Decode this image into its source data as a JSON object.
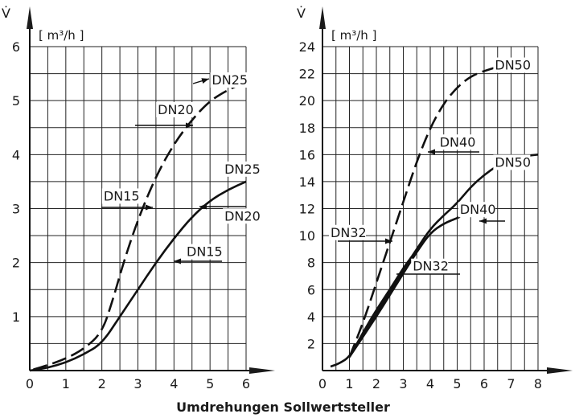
{
  "x_axis_title": "Umdrehungen Sollwertsteller",
  "chart_data": [
    {
      "type": "line",
      "y_symbol": "V̇",
      "y_unit": "[ m³/h ]",
      "xlim": [
        0,
        6
      ],
      "ylim": [
        0,
        6
      ],
      "x_ticks": [
        "0",
        "1",
        "2",
        "3",
        "4",
        "5",
        "6"
      ],
      "y_ticks": [
        "1",
        "2",
        "3",
        "4",
        "5",
        "6"
      ],
      "grid": true,
      "series": [
        {
          "style": "dashed",
          "points": [
            [
              0.1,
              0.02
            ],
            [
              0.5,
              0.1
            ],
            [
              1.0,
              0.22
            ],
            [
              1.5,
              0.4
            ],
            [
              2.0,
              0.7
            ],
            [
              2.3,
              1.3
            ],
            [
              2.6,
              2.0
            ],
            [
              3.0,
              2.8
            ],
            [
              3.5,
              3.6
            ],
            [
              4.0,
              4.2
            ],
            [
              4.5,
              4.65
            ],
            [
              5.0,
              5.0
            ],
            [
              5.5,
              5.2
            ],
            [
              6.0,
              5.35
            ]
          ]
        },
        {
          "style": "solid",
          "points": [
            [
              0.0,
              0.0
            ],
            [
              0.5,
              0.05
            ],
            [
              1.0,
              0.15
            ],
            [
              1.5,
              0.3
            ],
            [
              2.0,
              0.5
            ],
            [
              2.5,
              1.0
            ],
            [
              3.0,
              1.5
            ],
            [
              3.5,
              2.0
            ],
            [
              4.0,
              2.45
            ],
            [
              4.5,
              2.85
            ],
            [
              5.0,
              3.15
            ],
            [
              5.5,
              3.35
            ],
            [
              6.0,
              3.5
            ]
          ]
        }
      ],
      "annotations": [
        {
          "text": "DN25",
          "at": [
            5.05,
            5.3
          ]
        },
        {
          "text": "DN20",
          "at": [
            3.55,
            4.75
          ]
        },
        {
          "text": "DN25",
          "at": [
            5.4,
            3.65
          ]
        },
        {
          "text": "DN15",
          "at": [
            2.05,
            3.15
          ]
        },
        {
          "text": "DN20",
          "at": [
            5.4,
            2.78
          ]
        },
        {
          "text": "DN15",
          "at": [
            4.35,
            2.12
          ]
        }
      ]
    },
    {
      "type": "line",
      "y_symbol": "V̇",
      "y_unit": "[ m³/h ]",
      "xlim": [
        0,
        8
      ],
      "ylim": [
        0,
        24
      ],
      "x_ticks": [
        "0",
        "1",
        "2",
        "3",
        "4",
        "5",
        "6",
        "7",
        "8"
      ],
      "y_ticks": [
        "2",
        "4",
        "6",
        "8",
        "10",
        "12",
        "14",
        "16",
        "18",
        "20",
        "22",
        "24"
      ],
      "grid": true,
      "series": [
        {
          "style": "dashed",
          "points": [
            [
              1.0,
              1.0
            ],
            [
              1.5,
              3.5
            ],
            [
              2.0,
              6.5
            ],
            [
              2.5,
              9.5
            ],
            [
              3.0,
              12.5
            ],
            [
              3.5,
              15.5
            ],
            [
              4.0,
              18.0
            ],
            [
              4.5,
              19.8
            ],
            [
              5.0,
              21.0
            ],
            [
              5.5,
              21.8
            ],
            [
              6.0,
              22.2
            ],
            [
              6.5,
              22.5
            ],
            [
              7.0,
              22.7
            ],
            [
              7.5,
              22.9
            ]
          ]
        },
        {
          "style": "solid",
          "points": [
            [
              0.3,
              0.3
            ],
            [
              0.6,
              0.5
            ],
            [
              1.0,
              1.0
            ],
            [
              1.5,
              2.6
            ],
            [
              2.0,
              4.2
            ],
            [
              2.5,
              5.8
            ],
            [
              3.0,
              7.5
            ],
            [
              3.5,
              9.0
            ],
            [
              4.0,
              10.5
            ],
            [
              4.5,
              11.5
            ],
            [
              5.0,
              12.4
            ],
            [
              5.5,
              13.6
            ],
            [
              6.0,
              14.5
            ],
            [
              6.5,
              15.2
            ],
            [
              7.0,
              15.6
            ],
            [
              7.5,
              15.9
            ],
            [
              8.0,
              16.0
            ]
          ]
        },
        {
          "style": "solid",
          "points": [
            [
              1.0,
              1.0
            ],
            [
              1.5,
              2.5
            ],
            [
              2.0,
              4.0
            ],
            [
              2.5,
              5.6
            ],
            [
              3.0,
              7.2
            ],
            [
              3.5,
              8.8
            ],
            [
              4.0,
              10.2
            ],
            [
              4.5,
              10.9
            ],
            [
              5.0,
              11.3
            ],
            [
              5.1,
              11.4
            ]
          ]
        },
        {
          "style": "solid",
          "points": [
            [
              1.0,
              1.0
            ],
            [
              1.5,
              2.8
            ],
            [
              2.0,
              4.5
            ],
            [
              2.5,
              6.0
            ],
            [
              3.0,
              7.6
            ],
            [
              3.3,
              8.4
            ]
          ]
        }
      ],
      "annotations": [
        {
          "text": "DN50",
          "at": [
            6.4,
            22.3
          ]
        },
        {
          "text": "DN40",
          "at": [
            4.35,
            16.6
          ]
        },
        {
          "text": "DN50",
          "at": [
            6.4,
            15.1
          ]
        },
        {
          "text": "DN40",
          "at": [
            5.1,
            11.6
          ]
        },
        {
          "text": "DN32",
          "at": [
            0.3,
            9.9
          ]
        },
        {
          "text": "DN32",
          "at": [
            3.35,
            7.4
          ]
        }
      ]
    }
  ]
}
